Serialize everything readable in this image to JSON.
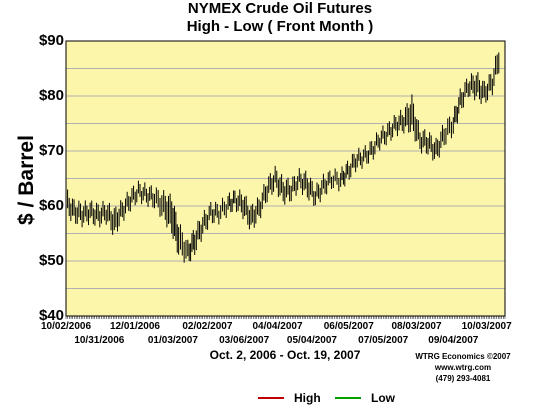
{
  "header": {
    "title": "NYMEX Crude Oil Futures",
    "subtitle": "High - Low ( Front Month )"
  },
  "axes": {
    "ylabel": "$ / Barrel",
    "date_range": "Oct. 2, 2006 - Oct. 19, 2007"
  },
  "credit": {
    "line1": "WTRG Economics  ©2007",
    "line2": "www.wtrg.com",
    "line3": "(479) 293-4081"
  },
  "legend": [
    {
      "label": "High",
      "color": "#c00000"
    },
    {
      "label": "Low",
      "color": "#00a000"
    }
  ],
  "colors": {
    "plot_background": "#fbf6a9",
    "grid": "#b0b0b0",
    "bar": "#000000"
  },
  "chart_data": {
    "type": "line",
    "title": "NYMEX Crude Oil Futures",
    "subtitle": "High - Low ( Front Month )",
    "ylabel": "$ / Barrel",
    "ylim": [
      40,
      90
    ],
    "yticks": [
      "$40",
      "$50",
      "$60",
      "$70",
      "$80",
      "$90"
    ],
    "grid": true,
    "xlim": [
      "10/02/2006",
      "10/19/2007"
    ],
    "xticks_top": [
      "10/02/2006",
      "12/01/2006",
      "02/02/2007",
      "04/04/2007",
      "06/05/2007",
      "08/03/2007",
      "10/03/2007"
    ],
    "xticks_bottom": [
      "10/31/2006",
      "01/03/2007",
      "03/06/2007",
      "05/04/2007",
      "07/05/2007",
      "09/04/2007"
    ],
    "legend_position": "bottom",
    "x": [
      "2006-10-02",
      "2006-10-09",
      "2006-10-16",
      "2006-10-23",
      "2006-10-30",
      "2006-11-06",
      "2006-11-13",
      "2006-11-20",
      "2006-11-27",
      "2006-12-04",
      "2006-12-11",
      "2006-12-18",
      "2006-12-26",
      "2007-01-02",
      "2007-01-08",
      "2007-01-16",
      "2007-01-22",
      "2007-01-29",
      "2007-02-05",
      "2007-02-12",
      "2007-02-20",
      "2007-02-26",
      "2007-03-05",
      "2007-03-12",
      "2007-03-19",
      "2007-03-26",
      "2007-04-02",
      "2007-04-09",
      "2007-04-16",
      "2007-04-23",
      "2007-04-30",
      "2007-05-07",
      "2007-05-14",
      "2007-05-21",
      "2007-05-29",
      "2007-06-04",
      "2007-06-11",
      "2007-06-18",
      "2007-06-25",
      "2007-07-02",
      "2007-07-09",
      "2007-07-16",
      "2007-07-23",
      "2007-07-30",
      "2007-08-06",
      "2007-08-13",
      "2007-08-20",
      "2007-08-27",
      "2007-09-04",
      "2007-09-10",
      "2007-09-17",
      "2007-09-24",
      "2007-10-01",
      "2007-10-08",
      "2007-10-15"
    ],
    "series": [
      {
        "name": "High",
        "values": [
          62.5,
          60.5,
          60.0,
          60.3,
          59.8,
          60.2,
          59.0,
          60.5,
          62.5,
          63.8,
          63.3,
          62.8,
          62.0,
          61.3,
          56.5,
          53.0,
          55.5,
          58.0,
          60.0,
          60.0,
          61.5,
          62.3,
          62.0,
          59.5,
          61.0,
          64.5,
          66.5,
          64.5,
          64.3,
          66.0,
          65.5,
          63.0,
          65.0,
          66.0,
          66.0,
          67.5,
          69.5,
          70.0,
          71.3,
          73.3,
          74.5,
          76.0,
          77.0,
          79.5,
          73.5,
          73.0,
          71.5,
          74.5,
          76.5,
          80.5,
          83.0,
          83.8,
          82.0,
          84.0,
          90.0
        ]
      },
      {
        "name": "Low",
        "values": [
          59.0,
          57.5,
          57.0,
          57.5,
          56.8,
          57.5,
          55.0,
          57.8,
          59.8,
          61.5,
          60.8,
          60.2,
          58.0,
          55.5,
          51.5,
          50.0,
          51.8,
          55.0,
          57.5,
          57.5,
          59.0,
          60.0,
          58.5,
          56.0,
          58.0,
          61.5,
          63.5,
          61.0,
          61.5,
          63.5,
          62.0,
          60.5,
          62.3,
          63.8,
          63.5,
          65.0,
          67.0,
          67.8,
          68.8,
          71.0,
          72.0,
          73.5,
          74.0,
          74.0,
          70.5,
          70.0,
          68.5,
          71.5,
          73.5,
          77.5,
          80.5,
          80.0,
          79.0,
          81.0,
          86.0
        ]
      }
    ]
  }
}
